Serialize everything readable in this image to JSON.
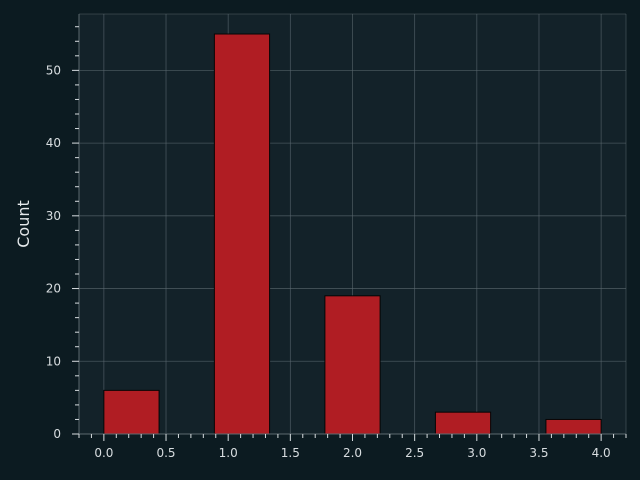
{
  "chart_data": {
    "type": "bar",
    "title": "",
    "xlabel": "",
    "ylabel": "Count",
    "bars": [
      {
        "x_start": 0.0,
        "x_end": 0.444,
        "value": 6
      },
      {
        "x_start": 0.889,
        "x_end": 1.333,
        "value": 55
      },
      {
        "x_start": 1.778,
        "x_end": 2.222,
        "value": 19
      },
      {
        "x_start": 2.667,
        "x_end": 3.111,
        "value": 3
      },
      {
        "x_start": 3.556,
        "x_end": 4.0,
        "value": 2
      }
    ],
    "xlim": [
      -0.2,
      4.2
    ],
    "ylim": [
      0,
      57.75
    ],
    "x_ticks": [
      "0.0",
      "0.5",
      "1.0",
      "1.5",
      "2.0",
      "2.5",
      "3.0",
      "3.5",
      "4.0"
    ],
    "y_ticks": [
      "0",
      "10",
      "20",
      "30",
      "40",
      "50"
    ],
    "grid": true,
    "colors": {
      "background": "#0c1b21",
      "plot_background": "#132229",
      "bar": "#b01d23",
      "bar_edge": "#050505",
      "grid": "#5d6a70",
      "text": "#d8dde0"
    }
  }
}
